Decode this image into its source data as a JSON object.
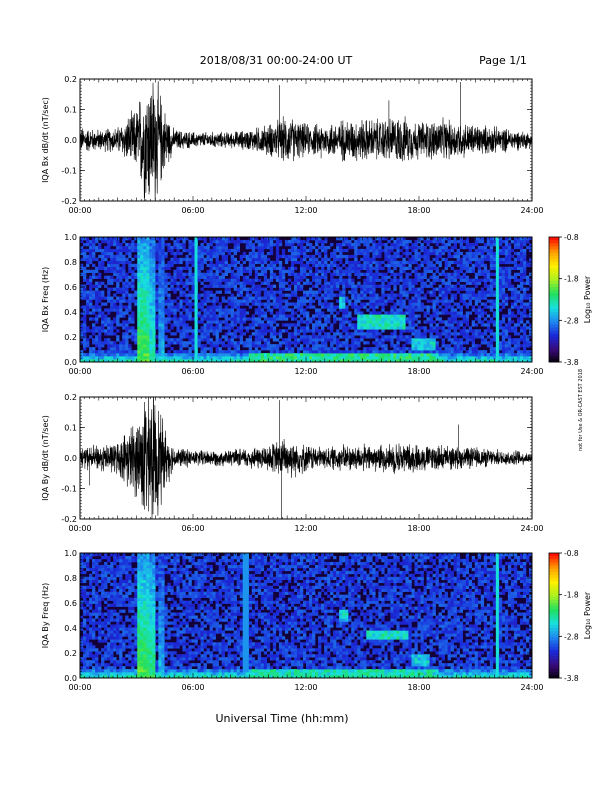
{
  "header": {
    "title": "2018/08/31  00:00-24:00 UT",
    "page": "Page 1/1"
  },
  "footer": {
    "xlabel": "Universal Time (hh:mm)",
    "side_note": "not for Use & OR-CAST EST 2018"
  },
  "colors": {
    "trace": "#000000",
    "colormap": [
      "#000000",
      "#3a0a78",
      "#1a28d8",
      "#1e86f0",
      "#18e0e0",
      "#20e060",
      "#a8f020",
      "#fff000",
      "#ffa000",
      "#ff1000"
    ]
  },
  "chart_data": [
    {
      "type": "line",
      "ylabel": "IQA Bx dB/dt (nT/sec)",
      "x_ticks": [
        "00:00",
        "06:00",
        "12:00",
        "18:00",
        "24:00"
      ],
      "xlim": [
        0,
        24
      ],
      "ylim": [
        -0.2,
        0.2
      ],
      "y_ticks": [
        "-0.2",
        "-0.1",
        "0.0",
        "0.1",
        "0.2"
      ],
      "envelope": {
        "hours": [
          0,
          1,
          2,
          3,
          3.5,
          4,
          4.5,
          5,
          6,
          7,
          8,
          9,
          10,
          11,
          12,
          13,
          14,
          15,
          16,
          17,
          18,
          19,
          20,
          21,
          22,
          23,
          24
        ],
        "amplitude": [
          0.05,
          0.04,
          0.05,
          0.12,
          0.25,
          0.25,
          0.12,
          0.04,
          0.03,
          0.03,
          0.03,
          0.04,
          0.06,
          0.09,
          0.06,
          0.06,
          0.08,
          0.08,
          0.08,
          0.09,
          0.07,
          0.08,
          0.07,
          0.06,
          0.05,
          0.04,
          0.03
        ]
      },
      "spikes": [
        {
          "hour": 10.6,
          "value": 0.18
        },
        {
          "hour": 16.4,
          "value": 0.13
        },
        {
          "hour": 20.2,
          "value": 0.19
        },
        {
          "hour": 12.8,
          "value": -0.06
        }
      ]
    },
    {
      "type": "heatmap",
      "ylabel": "IQA Bx Freq (Hz)",
      "x_ticks": [
        "00:00",
        "06:00",
        "12:00",
        "18:00",
        "24:00"
      ],
      "xlim": [
        0,
        24
      ],
      "ylim": [
        0,
        1
      ],
      "y_ticks": [
        "0.0",
        "0.2",
        "0.4",
        "0.6",
        "0.8",
        "1.0"
      ],
      "colorbar": {
        "label": "Log₁₀ Power",
        "ticks": [
          "-0.8",
          "-1.8",
          "-2.8",
          "-3.8"
        ],
        "range": [
          -3.8,
          -0.8
        ]
      },
      "features": [
        {
          "kind": "vband",
          "h0": 3.1,
          "h1": 3.6,
          "level": 0.55
        },
        {
          "kind": "vband",
          "h0": 3.6,
          "h1": 4.0,
          "level": 0.45
        },
        {
          "kind": "vband",
          "h0": 4.2,
          "h1": 4.5,
          "level": 0.35
        },
        {
          "kind": "vline",
          "hour": 6.15,
          "level": 0.45
        },
        {
          "kind": "vline",
          "hour": 22.1,
          "level": 0.45
        },
        {
          "kind": "blob",
          "h0": 14.8,
          "h1": 17.2,
          "f0": 0.27,
          "f1": 0.37,
          "level": 0.55
        },
        {
          "kind": "blob",
          "h0": 13.7,
          "h1": 14.1,
          "f0": 0.44,
          "f1": 0.52,
          "level": 0.5
        },
        {
          "kind": "blob",
          "h0": 17.6,
          "h1": 18.8,
          "f0": 0.1,
          "f1": 0.18,
          "level": 0.5
        },
        {
          "kind": "floor",
          "h0": 9.0,
          "h1": 19.0,
          "f1": 0.06,
          "level": 0.6
        }
      ]
    },
    {
      "type": "line",
      "ylabel": "IQA By dB/dt (nT/sec)",
      "x_ticks": [
        "00:00",
        "06:00",
        "12:00",
        "18:00",
        "24:00"
      ],
      "xlim": [
        0,
        24
      ],
      "ylim": [
        -0.2,
        0.2
      ],
      "y_ticks": [
        "-0.2",
        "-0.1",
        "0.0",
        "0.1",
        "0.2"
      ],
      "envelope": {
        "hours": [
          0,
          1,
          2,
          3,
          3.5,
          4,
          4.5,
          5,
          6,
          7,
          8,
          9,
          10,
          11,
          12,
          13,
          14,
          15,
          16,
          17,
          18,
          19,
          20,
          21,
          22,
          23,
          24
        ],
        "amplitude": [
          0.04,
          0.05,
          0.06,
          0.15,
          0.25,
          0.25,
          0.12,
          0.04,
          0.03,
          0.03,
          0.03,
          0.04,
          0.05,
          0.08,
          0.05,
          0.04,
          0.05,
          0.05,
          0.05,
          0.06,
          0.05,
          0.05,
          0.04,
          0.04,
          0.03,
          0.03,
          0.02
        ]
      },
      "spikes": [
        {
          "hour": 10.6,
          "value": 0.19
        },
        {
          "hour": 10.7,
          "value": -0.2
        },
        {
          "hour": 20.1,
          "value": 0.11
        },
        {
          "hour": 0.5,
          "value": -0.09
        }
      ]
    },
    {
      "type": "heatmap",
      "ylabel": "IQA By Freq (Hz)",
      "x_ticks": [
        "00:00",
        "06:00",
        "12:00",
        "18:00",
        "24:00"
      ],
      "xlim": [
        0,
        24
      ],
      "ylim": [
        0,
        1
      ],
      "y_ticks": [
        "0.0",
        "0.2",
        "0.4",
        "0.6",
        "0.8",
        "1.0"
      ],
      "colorbar": {
        "label": "Log₁₀ Power",
        "ticks": [
          "-0.8",
          "-1.8",
          "-2.8",
          "-3.8"
        ],
        "range": [
          -3.8,
          -0.8
        ]
      },
      "features": [
        {
          "kind": "vband",
          "h0": 3.1,
          "h1": 3.6,
          "level": 0.55
        },
        {
          "kind": "vband",
          "h0": 3.6,
          "h1": 4.0,
          "level": 0.5
        },
        {
          "kind": "vband",
          "h0": 4.2,
          "h1": 4.5,
          "level": 0.35
        },
        {
          "kind": "vline",
          "hour": 8.8,
          "level": 0.35
        },
        {
          "kind": "vline",
          "hour": 22.2,
          "level": 0.45
        },
        {
          "kind": "blob",
          "h0": 15.2,
          "h1": 17.4,
          "f0": 0.3,
          "f1": 0.38,
          "level": 0.55
        },
        {
          "kind": "blob",
          "h0": 13.8,
          "h1": 14.2,
          "f0": 0.46,
          "f1": 0.54,
          "level": 0.5
        },
        {
          "kind": "blob",
          "h0": 17.6,
          "h1": 18.6,
          "f0": 0.1,
          "f1": 0.18,
          "level": 0.5
        },
        {
          "kind": "floor",
          "h0": 9.0,
          "h1": 19.0,
          "f1": 0.06,
          "level": 0.55
        }
      ]
    }
  ]
}
